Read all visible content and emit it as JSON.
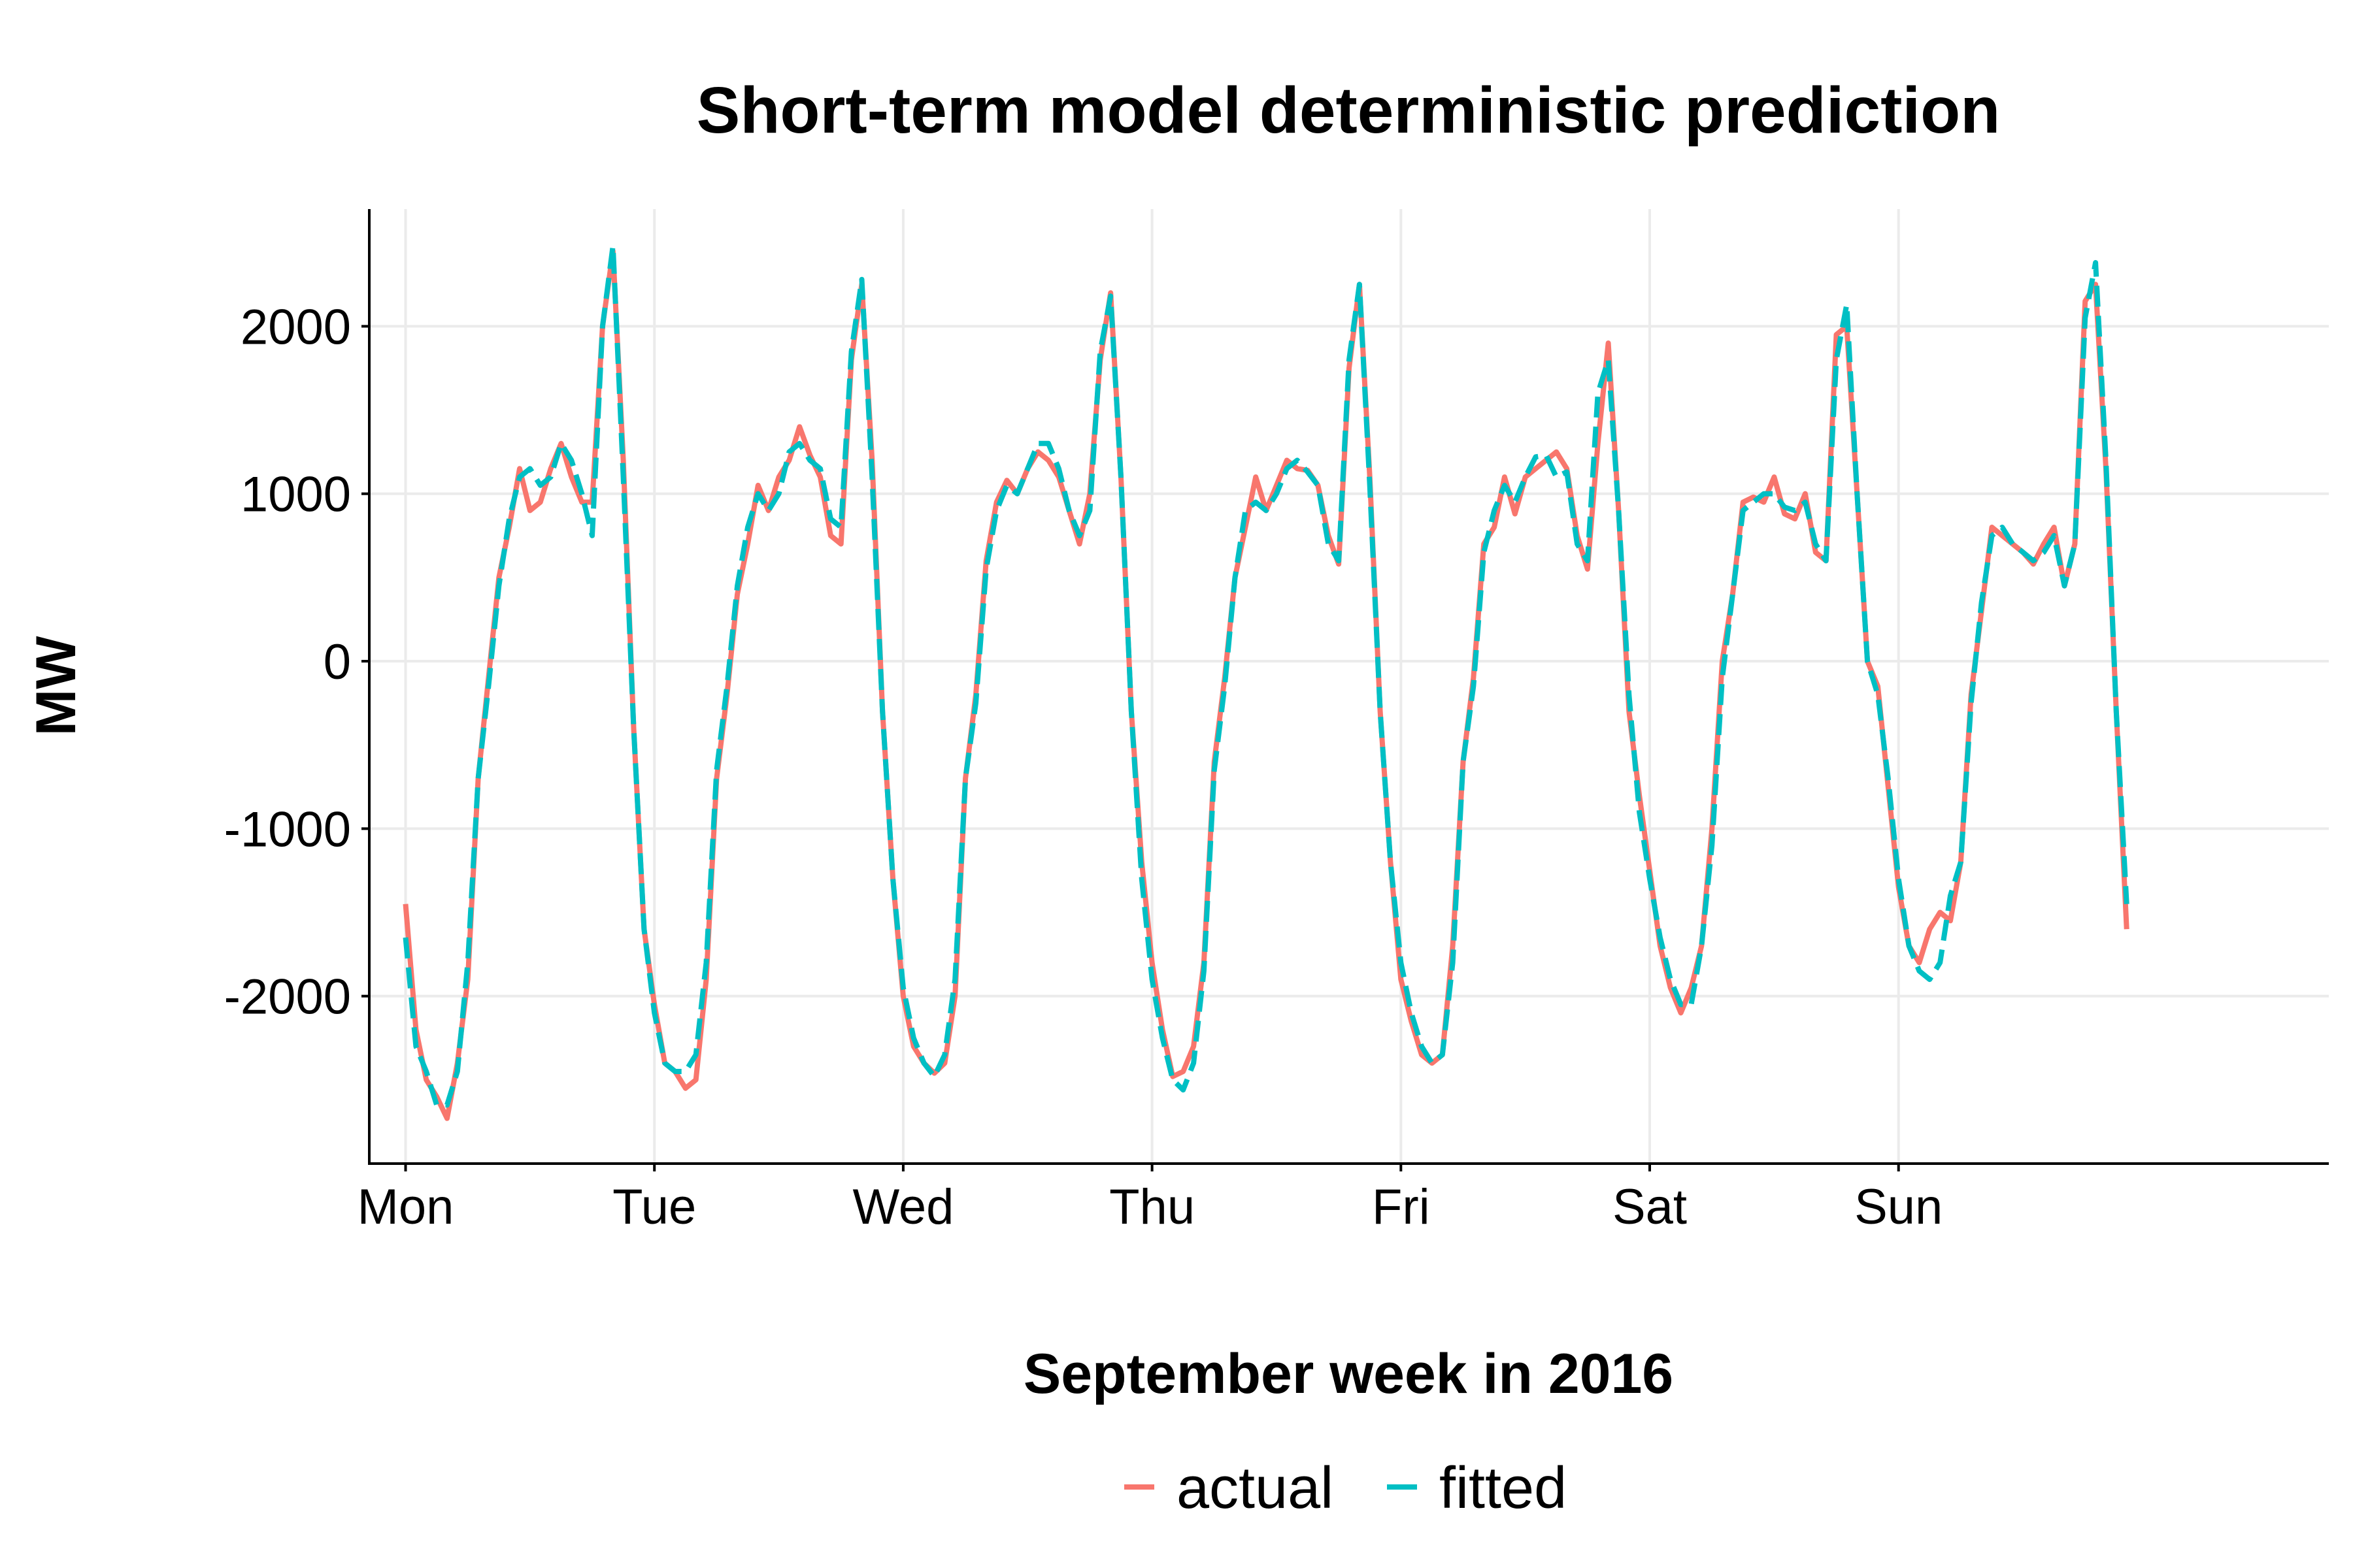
{
  "chart_data": {
    "type": "line",
    "title": "Short-term model deterministic prediction",
    "xlabel": "September week in 2016",
    "ylabel": "MW",
    "x_unit": "hour of week",
    "xlim": [
      -3.5,
      185.5
    ],
    "ylim": [
      -3000,
      2700
    ],
    "x_ticks": [
      {
        "label": "Mon",
        "x": 0
      },
      {
        "label": "Tue",
        "x": 24
      },
      {
        "label": "Wed",
        "x": 48
      },
      {
        "label": "Thu",
        "x": 72
      },
      {
        "label": "Fri",
        "x": 96
      },
      {
        "label": "Sat",
        "x": 120
      },
      {
        "label": "Sun",
        "x": 144
      }
    ],
    "y_ticks": [
      {
        "label": "2000",
        "y": 2000
      },
      {
        "label": "1000",
        "y": 1000
      },
      {
        "label": "0",
        "y": 0
      },
      {
        "label": "-1000",
        "y": -1000
      },
      {
        "label": "-2000",
        "y": -2000
      }
    ],
    "grid": true,
    "legend_position": "bottom",
    "series": [
      {
        "name": "actual",
        "color": "#F8766D",
        "dash": "solid",
        "values": [
          -1450,
          -2200,
          -2500,
          -2600,
          -2730,
          -2400,
          -1900,
          -700,
          -100,
          500,
          800,
          1150,
          900,
          950,
          1150,
          1300,
          1100,
          950,
          950,
          2000,
          2450,
          1200,
          -400,
          -1600,
          -2050,
          -2400,
          -2450,
          -2550,
          -2500,
          -1900,
          -700,
          -200,
          400,
          700,
          1050,
          900,
          1100,
          1200,
          1400,
          1230,
          1100,
          750,
          700,
          1800,
          2250,
          1200,
          -300,
          -1300,
          -2000,
          -2300,
          -2400,
          -2460,
          -2400,
          -2000,
          -700,
          -200,
          600,
          950,
          1080,
          1000,
          1150,
          1250,
          1200,
          1100,
          900,
          700,
          1000,
          1800,
          2200,
          1100,
          -300,
          -1200,
          -1800,
          -2200,
          -2480,
          -2450,
          -2300,
          -1800,
          -600,
          -100,
          500,
          800,
          1100,
          900,
          1050,
          1200,
          1150,
          1140,
          1050,
          750,
          580,
          1750,
          2250,
          1100,
          -300,
          -1200,
          -1900,
          -2150,
          -2350,
          -2400,
          -2350,
          -1700,
          -600,
          -100,
          700,
          800,
          1100,
          880,
          1100,
          1150,
          1200,
          1250,
          1150,
          750,
          550,
          1300,
          1900,
          900,
          -300,
          -800,
          -1250,
          -1700,
          -1950,
          -2100,
          -1950,
          -1700,
          -1000,
          0,
          400,
          950,
          980,
          950,
          1100,
          880,
          850,
          1000,
          650,
          600,
          1950,
          2000,
          1000,
          0,
          -150,
          -750,
          -1350,
          -1700,
          -1800,
          -1600,
          -1500,
          -1550,
          -1200,
          -200,
          300,
          800,
          750,
          700,
          650,
          580,
          700,
          800,
          450,
          700,
          2150,
          2250,
          1150,
          -300,
          -1600
        ]
      },
      {
        "name": "fitted",
        "color": "#00BFC4",
        "dash": "dashed",
        "values": [
          -1650,
          -2300,
          -2450,
          -2650,
          -2650,
          -2450,
          -1800,
          -700,
          -150,
          450,
          850,
          1100,
          1150,
          1050,
          1100,
          1300,
          1200,
          1000,
          750,
          2000,
          2480,
          1100,
          -400,
          -1600,
          -2100,
          -2400,
          -2450,
          -2450,
          -2350,
          -1800,
          -650,
          -150,
          450,
          800,
          1000,
          900,
          1000,
          1250,
          1300,
          1200,
          1150,
          850,
          800,
          1850,
          2280,
          1100,
          -300,
          -1300,
          -1950,
          -2250,
          -2400,
          -2480,
          -2350,
          -1900,
          -700,
          -250,
          550,
          900,
          1050,
          1000,
          1150,
          1300,
          1300,
          1150,
          900,
          750,
          900,
          1850,
          2180,
          1100,
          -300,
          -1300,
          -1900,
          -2250,
          -2500,
          -2560,
          -2400,
          -1850,
          -650,
          -150,
          500,
          900,
          950,
          900,
          1000,
          1150,
          1200,
          1130,
          1050,
          700,
          600,
          1800,
          2250,
          1050,
          -300,
          -1200,
          -1800,
          -2100,
          -2300,
          -2400,
          -2350,
          -1800,
          -600,
          -150,
          650,
          900,
          1050,
          950,
          1100,
          1220,
          1230,
          1100,
          1130,
          700,
          600,
          1600,
          1800,
          900,
          -200,
          -900,
          -1300,
          -1650,
          -1900,
          -2050,
          -2050,
          -1700,
          -1100,
          -100,
          400,
          900,
          950,
          1000,
          1000,
          920,
          900,
          950,
          700,
          600,
          1800,
          2130,
          1000,
          0,
          -200,
          -700,
          -1300,
          -1700,
          -1850,
          -1900,
          -1800,
          -1400,
          -1200,
          -250,
          350,
          750,
          800,
          700,
          650,
          600,
          650,
          750,
          450,
          700,
          2050,
          2380,
          1200,
          -300,
          -1450
        ]
      }
    ]
  }
}
